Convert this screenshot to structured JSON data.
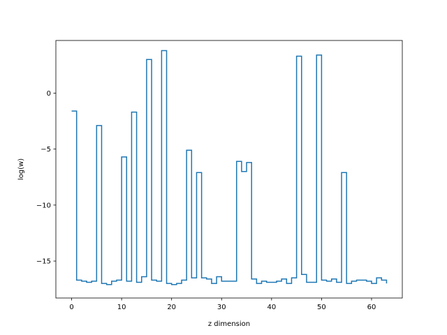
{
  "chart_data": {
    "type": "line",
    "drawstyle": "steps-post",
    "title": "",
    "xlabel": "z dimension",
    "ylabel": "log(w)",
    "xlim": [
      -3.15,
      66.15
    ],
    "ylim": [
      -18.3,
      4.7
    ],
    "xticks": [
      0,
      10,
      20,
      30,
      40,
      50,
      60
    ],
    "yticks": [
      -15,
      -10,
      -5,
      0
    ],
    "tick_labels": {
      "x": [
        "0",
        "10",
        "20",
        "30",
        "40",
        "50",
        "60"
      ],
      "y": [
        "−15",
        "−10",
        "−5",
        "0"
      ]
    },
    "grid": false,
    "legend": "none",
    "series": [
      {
        "color": "#1f77b4",
        "x": [
          0,
          1,
          2,
          3,
          4,
          5,
          6,
          7,
          8,
          9,
          10,
          11,
          12,
          13,
          14,
          15,
          16,
          17,
          18,
          19,
          20,
          21,
          22,
          23,
          24,
          25,
          26,
          27,
          28,
          29,
          30,
          31,
          32,
          33,
          34,
          35,
          36,
          37,
          38,
          39,
          40,
          41,
          42,
          43,
          44,
          45,
          46,
          47,
          48,
          49,
          50,
          51,
          52,
          53,
          54,
          55,
          56,
          57,
          58,
          59,
          60,
          61,
          62,
          63
        ],
        "values": [
          -1.6,
          -16.7,
          -16.8,
          -16.9,
          -16.8,
          -2.9,
          -17.0,
          -17.1,
          -16.8,
          -16.7,
          -5.7,
          -16.8,
          -1.7,
          -16.9,
          -16.4,
          3.0,
          -16.7,
          -16.8,
          3.8,
          -17.0,
          -17.1,
          -17.0,
          -16.7,
          -5.1,
          -16.5,
          -7.1,
          -16.5,
          -16.6,
          -17.0,
          -16.4,
          -16.8,
          -16.8,
          -16.8,
          -6.1,
          -7.0,
          -6.2,
          -16.6,
          -17.0,
          -16.8,
          -16.9,
          -16.9,
          -16.8,
          -16.6,
          -17.0,
          -16.5,
          3.3,
          -16.2,
          -16.9,
          -16.9,
          3.4,
          -16.7,
          -16.8,
          -16.6,
          -16.9,
          -7.1,
          -17.0,
          -16.8,
          -16.7,
          -16.7,
          -16.8,
          -17.0,
          -16.5,
          -16.7,
          -17.0
        ]
      }
    ]
  }
}
